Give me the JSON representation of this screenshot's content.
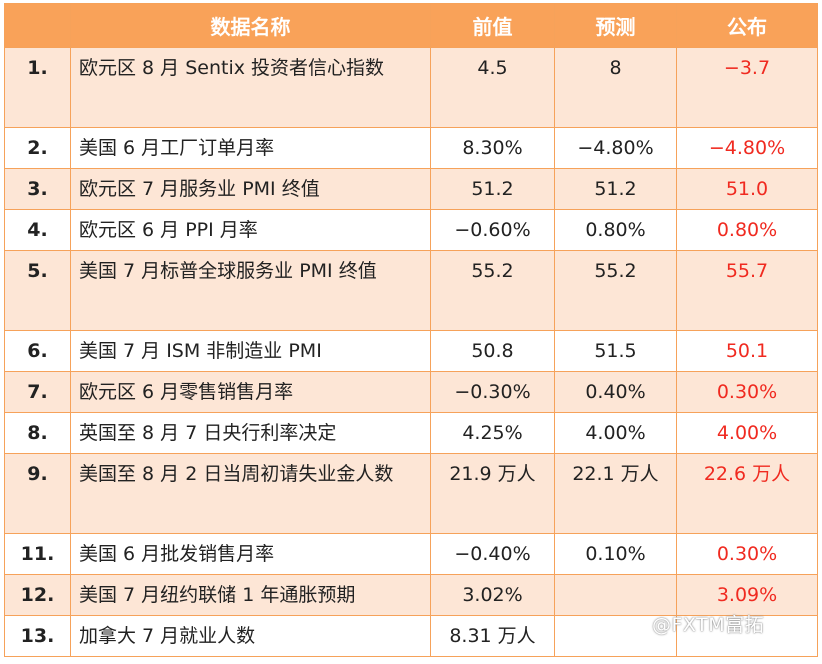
{
  "header": {
    "index": "",
    "name": "数据名称",
    "prior": "前值",
    "forecast": "预测",
    "actual": "公布"
  },
  "rows": [
    {
      "no": "1.",
      "name": "欧元区 8 月 Sentix 投资者信心指数",
      "prior": "4.5",
      "forecast": "8",
      "actual": "−3.7"
    },
    {
      "no": "2.",
      "name": "美国 6 月工厂订单月率",
      "prior": "8.30%",
      "forecast": "−4.80%",
      "actual": "−4.80%"
    },
    {
      "no": "3.",
      "name": "欧元区 7 月服务业 PMI 终值",
      "prior": "51.2",
      "forecast": "51.2",
      "actual": "51.0"
    },
    {
      "no": "4.",
      "name": "欧元区 6 月 PPI 月率",
      "prior": "−0.60%",
      "forecast": "0.80%",
      "actual": "0.80%"
    },
    {
      "no": "5.",
      "name": "美国 7 月标普全球服务业 PMI 终值",
      "prior": "55.2",
      "forecast": "55.2",
      "actual": "55.7"
    },
    {
      "no": "6.",
      "name": "美国 7 月 ISM 非制造业 PMI",
      "prior": "50.8",
      "forecast": "51.5",
      "actual": "50.1"
    },
    {
      "no": "7.",
      "name": "欧元区 6 月零售销售月率",
      "prior": "−0.30%",
      "forecast": "0.40%",
      "actual": "0.30%"
    },
    {
      "no": "8.",
      "name": "英国至 8 月 7 日央行利率决定",
      "prior": "4.25%",
      "forecast": "4.00%",
      "actual": "4.00%"
    },
    {
      "no": "9.",
      "name": "美国至 8 月 2 日当周初请失业金人数",
      "prior": "21.9 万人",
      "forecast": "22.1 万人",
      "actual": "22.6 万人"
    },
    {
      "no": "11.",
      "name": "美国 6 月批发销售月率",
      "prior": "−0.40%",
      "forecast": "0.10%",
      "actual": "0.30%"
    },
    {
      "no": "12.",
      "name": "美国 7 月纽约联储 1 年通胀预期",
      "prior": "3.02%",
      "forecast": "",
      "actual": "3.09%"
    },
    {
      "no": "13.",
      "name": "加拿大 7 月就业人数",
      "prior": "8.31 万人",
      "forecast": "",
      "actual": ""
    }
  ],
  "watermark": "@FXTM富拓",
  "colors": {
    "header_bg": "#f9a259",
    "odd_row_bg": "#fde6d6",
    "actual_text": "#f02a20",
    "border": "#f6a25a"
  }
}
